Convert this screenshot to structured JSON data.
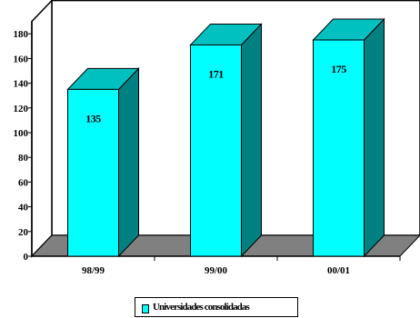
{
  "chart_data": {
    "type": "bar",
    "categories": [
      "98/99",
      "99/00",
      "00/01"
    ],
    "series": [
      {
        "name": "Universidades consolidadas",
        "values": [
          135,
          171,
          175
        ]
      }
    ],
    "data_labels": [
      "135",
      "171",
      "175"
    ],
    "y_ticks": [
      "0",
      "20",
      "40",
      "60",
      "80",
      "100",
      "120",
      "140",
      "160",
      "180"
    ],
    "ylim": [
      0,
      190
    ],
    "legend_position": "bottom",
    "grid": false,
    "three_d": true
  },
  "colors": {
    "bar_front": "#00FFFF",
    "bar_side": "#008080",
    "bar_top": "#00C0C0",
    "floor": "#808080"
  }
}
